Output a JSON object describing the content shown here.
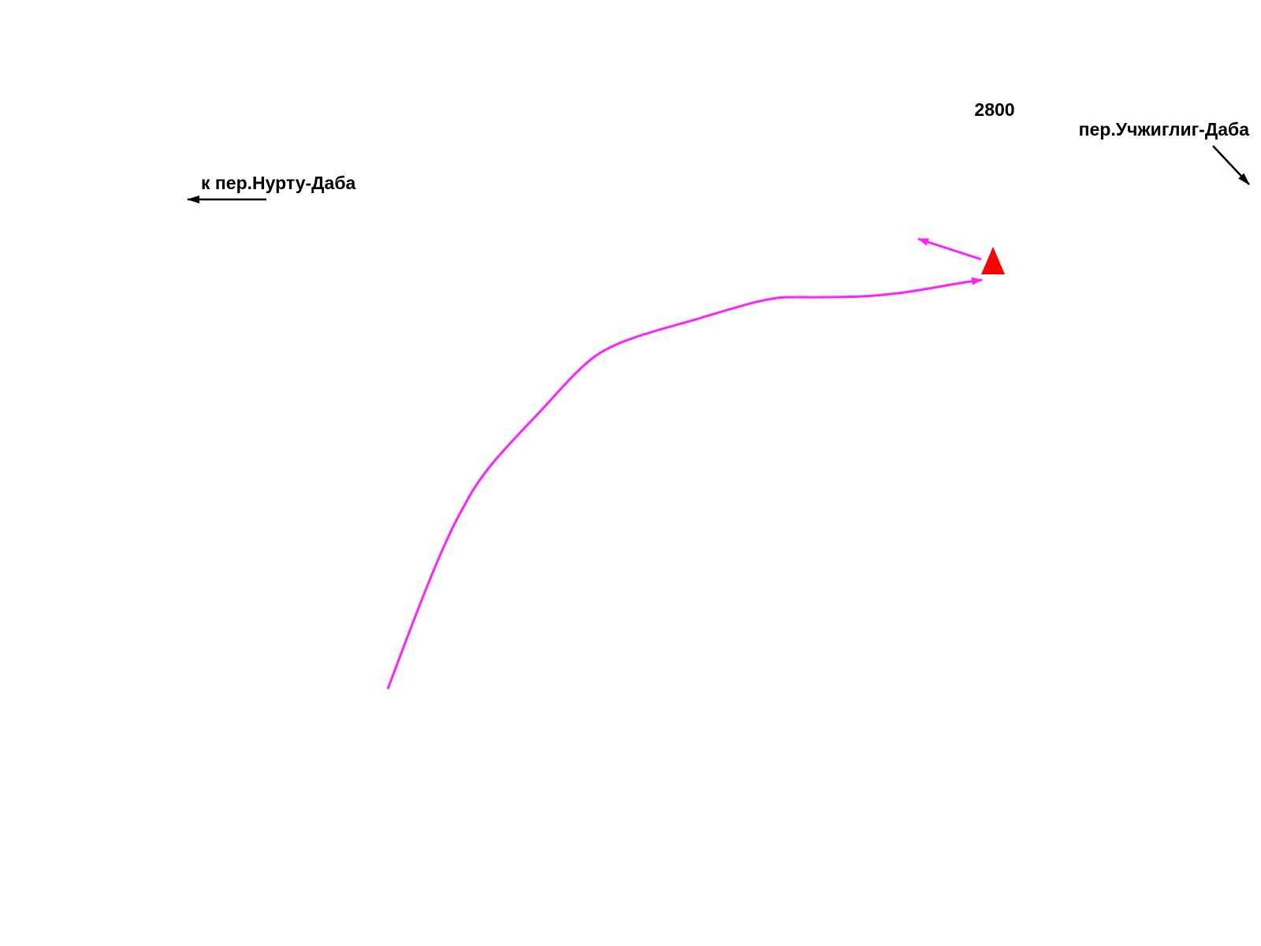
{
  "labels": {
    "pass_left": "к пер.Нурту-Даба",
    "pass_right": "пер.Учжиглиг-Даба",
    "elevation": 2800
  }
}
